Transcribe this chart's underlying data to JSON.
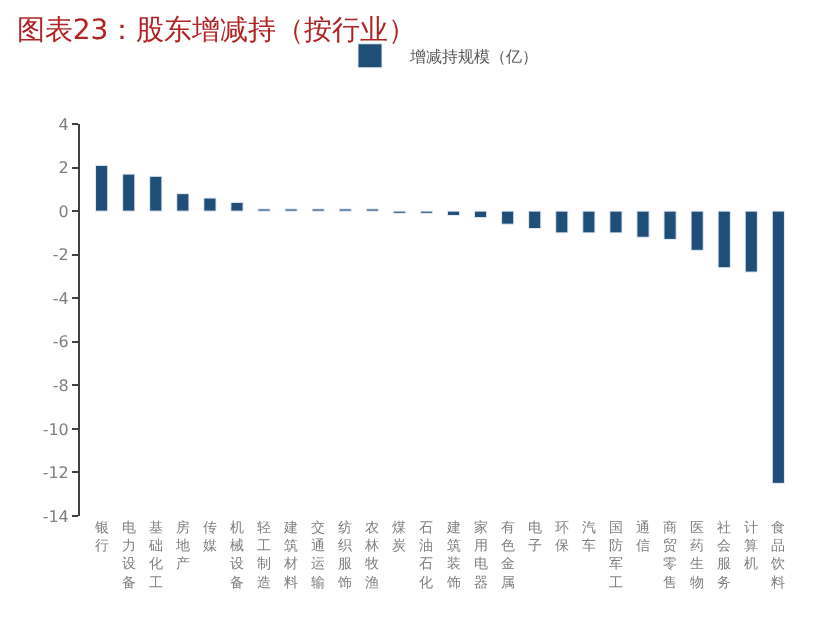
{
  "chart_data": {
    "type": "bar",
    "title": "图表23：股东增减持（按行业）",
    "categories": [
      "银行",
      "电力设备",
      "基础化工",
      "房地产",
      "传媒",
      "机械设备",
      "轻工制造",
      "建筑材料",
      "交通运输",
      "纺织服饰",
      "农林牧渔",
      "煤炭",
      "石油石化",
      "建筑装饰",
      "家用电器",
      "有色金属",
      "电子",
      "环保",
      "汽车",
      "国防军工",
      "通信",
      "商贸零售",
      "医药生物",
      "社会服务",
      "计算机",
      "食品饮料"
    ],
    "series": [
      {
        "name": "增减持规模（亿）",
        "color": "#1f4e79",
        "values": [
          2.1,
          1.7,
          1.6,
          0.8,
          0.6,
          0.4,
          0.1,
          0.1,
          0.1,
          0.1,
          0.1,
          -0.1,
          -0.1,
          -0.2,
          -0.3,
          -0.6,
          -0.8,
          -1.0,
          -1.0,
          -1.0,
          -1.2,
          -1.3,
          -1.8,
          -2.6,
          -2.8,
          -12.5
        ]
      }
    ],
    "ylim": [
      -14,
      4
    ],
    "yticks": [
      -14,
      -12,
      -10,
      -8,
      -6,
      -4,
      -2,
      0,
      2,
      4
    ],
    "legend": "top"
  }
}
